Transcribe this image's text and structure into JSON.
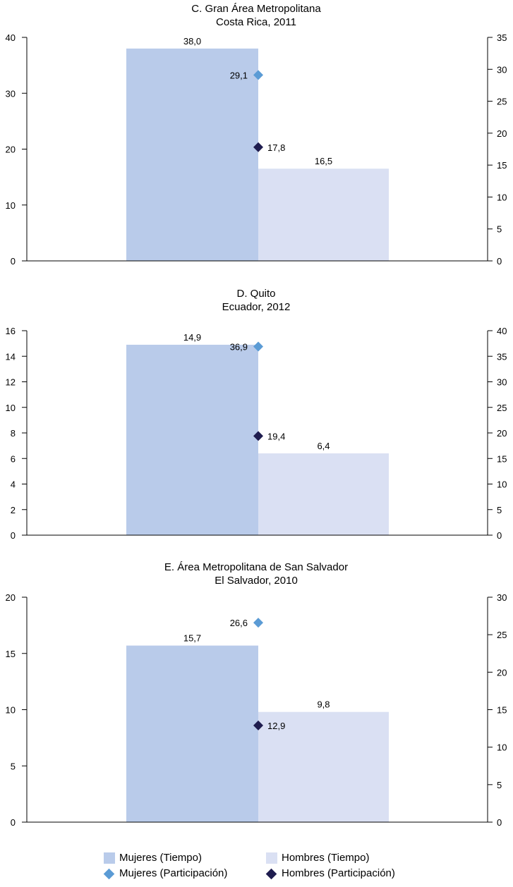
{
  "colors": {
    "mujeres_tiempo": "#b9cbea",
    "hombres_tiempo": "#dae0f3",
    "mujeres_participacion": "#5b9bd5",
    "hombres_participacion": "#1f1d4f"
  },
  "legend": {
    "mujeres_tiempo": "Mujeres (Tiempo)",
    "hombres_tiempo": "Hombres (Tiempo)",
    "mujeres_participacion": "Mujeres (Participación)",
    "hombres_participacion": "Hombres (Participación)"
  },
  "chart_data": [
    {
      "type": "bar",
      "title": "C. Gran Área Metropolitana",
      "subtitle": "Costa Rica, 2011",
      "ylim": [
        0,
        40
      ],
      "yticks": [
        0,
        10,
        20,
        30,
        40
      ],
      "y2lim": [
        0,
        35
      ],
      "y2ticks": [
        0,
        5,
        10,
        15,
        20,
        25,
        30,
        35
      ],
      "bars": [
        {
          "series": "Mujeres (Tiempo)",
          "value": 38.0,
          "label": "38,0"
        },
        {
          "series": "Hombres (Tiempo)",
          "value": 16.5,
          "label": "16,5"
        }
      ],
      "markers": [
        {
          "series": "Mujeres (Participación)",
          "value": 29.1,
          "label": "29,1"
        },
        {
          "series": "Hombres (Participación)",
          "value": 17.8,
          "label": "17,8"
        }
      ]
    },
    {
      "type": "bar",
      "title": "D. Quito",
      "subtitle": "Ecuador, 2012",
      "ylim": [
        0,
        16
      ],
      "yticks": [
        0,
        2,
        4,
        6,
        8,
        10,
        12,
        14,
        16
      ],
      "y2lim": [
        0,
        40
      ],
      "y2ticks": [
        0,
        5,
        10,
        15,
        20,
        25,
        30,
        35,
        40
      ],
      "bars": [
        {
          "series": "Mujeres (Tiempo)",
          "value": 14.9,
          "label": "14,9"
        },
        {
          "series": "Hombres (Tiempo)",
          "value": 6.4,
          "label": "6,4"
        }
      ],
      "markers": [
        {
          "series": "Mujeres (Participación)",
          "value": 36.9,
          "label": "36,9"
        },
        {
          "series": "Hombres (Participación)",
          "value": 19.4,
          "label": "19,4"
        }
      ]
    },
    {
      "type": "bar",
      "title": "E. Área Metropolitana de San Salvador",
      "subtitle": "El Salvador, 2010",
      "ylim": [
        0,
        20
      ],
      "yticks": [
        0,
        5,
        10,
        15,
        20
      ],
      "y2lim": [
        0,
        30
      ],
      "y2ticks": [
        0,
        5,
        10,
        15,
        20,
        25,
        30
      ],
      "bars": [
        {
          "series": "Mujeres (Tiempo)",
          "value": 15.7,
          "label": "15,7"
        },
        {
          "series": "Hombres (Tiempo)",
          "value": 9.8,
          "label": "9,8"
        }
      ],
      "markers": [
        {
          "series": "Mujeres (Participación)",
          "value": 26.6,
          "label": "26,6"
        },
        {
          "series": "Hombres (Participación)",
          "value": 12.9,
          "label": "12,9"
        }
      ]
    }
  ]
}
